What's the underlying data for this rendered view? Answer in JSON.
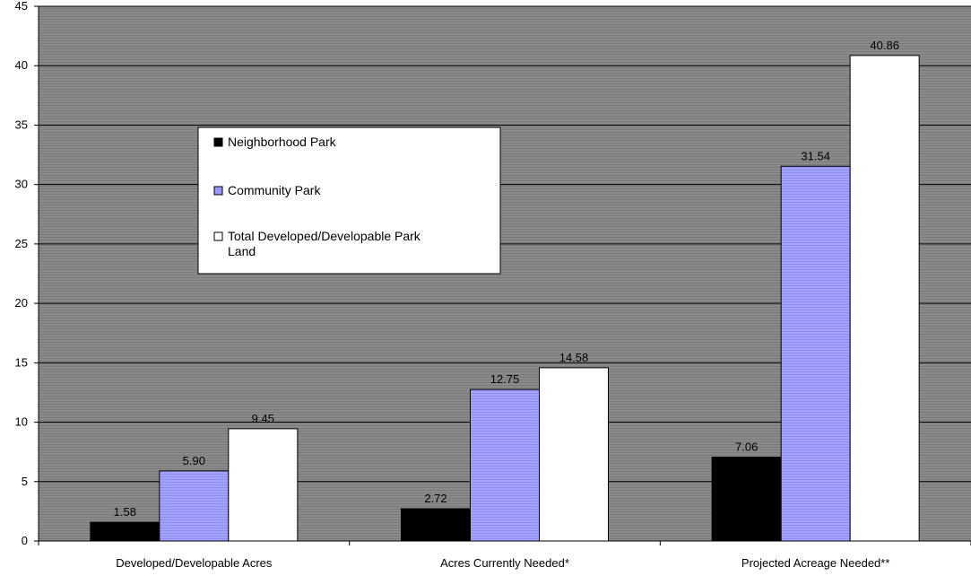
{
  "chart_data": {
    "type": "bar",
    "categories": [
      "Developed/Developable Acres",
      "Acres Currently Needed*",
      "Projected Acreage Needed**"
    ],
    "series": [
      {
        "name": "Neighborhood Park",
        "values": [
          1.58,
          2.72,
          7.06
        ],
        "labels": [
          "1.58",
          "2.72",
          "7.06"
        ],
        "color": "#000000"
      },
      {
        "name": "Community Park",
        "values": [
          5.9,
          12.75,
          31.54
        ],
        "labels": [
          "5.90",
          "12.75",
          "31.54"
        ],
        "color": "#9999ff"
      },
      {
        "name": "Total Developed/Developable Park Land",
        "values": [
          9.45,
          14.58,
          40.86
        ],
        "labels": [
          "9.45",
          "14.58",
          "40.86"
        ],
        "color": "#ffffff"
      }
    ],
    "ylim": [
      0,
      45
    ],
    "yticks": [
      0,
      5,
      10,
      15,
      20,
      25,
      30,
      35,
      40,
      45
    ],
    "grid": true,
    "legend_position": "upper-left inside plot",
    "plot_background": "#808080",
    "gridline_color": "#000000"
  }
}
